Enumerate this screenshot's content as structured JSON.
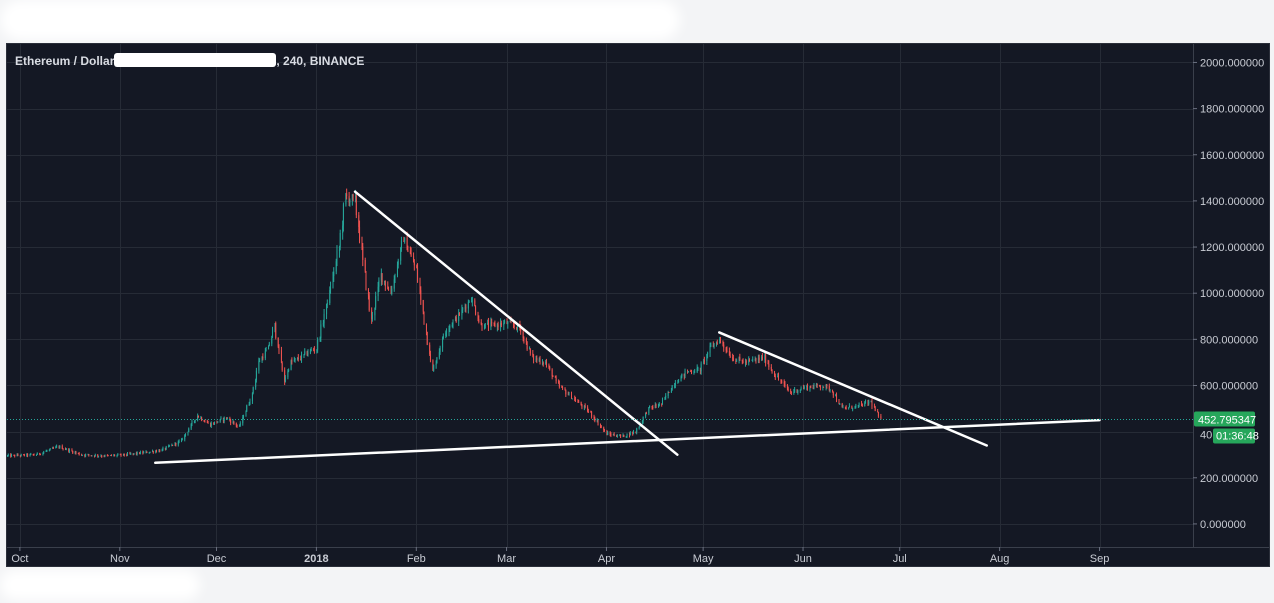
{
  "header": {
    "symbol": "Ethereum / Dollar",
    "interval_exchange": ", 240, BINANCE"
  },
  "last_price": {
    "value_label": "452.795347",
    "countdown": "01:36:48",
    "partial_tick": "40",
    "tag_color": "#26a65b",
    "line_color": "#26a69a"
  },
  "colors": {
    "background": "#141824",
    "grid": "#262b36",
    "up": "#26a69a",
    "down": "#ef5350",
    "trendline": "#ffffff"
  },
  "chart_data": {
    "type": "candlestick",
    "x_axis": {
      "type": "date",
      "range": [
        "2017-09-27",
        "2018-09-30"
      ],
      "tick_labels": [
        {
          "date": "2017-10-01",
          "label": "Oct"
        },
        {
          "date": "2017-11-01",
          "label": "Nov"
        },
        {
          "date": "2017-12-01",
          "label": "Dec"
        },
        {
          "date": "2018-01-01",
          "label": "2018",
          "bold": true
        },
        {
          "date": "2018-02-01",
          "label": "Feb"
        },
        {
          "date": "2018-03-01",
          "label": "Mar"
        },
        {
          "date": "2018-04-01",
          "label": "Apr"
        },
        {
          "date": "2018-05-01",
          "label": "May"
        },
        {
          "date": "2018-06-01",
          "label": "Jun"
        },
        {
          "date": "2018-07-01",
          "label": "Jul"
        },
        {
          "date": "2018-08-01",
          "label": "Aug"
        },
        {
          "date": "2018-09-01",
          "label": "Sep"
        }
      ]
    },
    "y_axis": {
      "range": [
        -100,
        2080
      ],
      "ticks": [
        {
          "value": 0,
          "label": "0.000000"
        },
        {
          "value": 200,
          "label": "200.000000"
        },
        {
          "value": 600,
          "label": "600.000000"
        },
        {
          "value": 800,
          "label": "800.000000"
        },
        {
          "value": 1000,
          "label": "1000.000000"
        },
        {
          "value": 1200,
          "label": "1200.000000"
        },
        {
          "value": 1400,
          "label": "1400.000000"
        },
        {
          "value": 1600,
          "label": "1600.000000"
        },
        {
          "value": 1800,
          "label": "1800.000000"
        },
        {
          "value": 2000,
          "label": "2000.000000"
        }
      ],
      "grid_values": [
        0,
        200,
        400,
        600,
        800,
        1000,
        1200,
        1400,
        1600,
        1800,
        2000
      ]
    },
    "grid": true,
    "price_path": [
      [
        "2017-09-27",
        295
      ],
      [
        "2017-10-06",
        300
      ],
      [
        "2017-10-13",
        335
      ],
      [
        "2017-10-20",
        300
      ],
      [
        "2017-10-28",
        295
      ],
      [
        "2017-11-03",
        300
      ],
      [
        "2017-11-09",
        310
      ],
      [
        "2017-11-14",
        320
      ],
      [
        "2017-11-20",
        360
      ],
      [
        "2017-11-25",
        470
      ],
      [
        "2017-11-29",
        430
      ],
      [
        "2017-12-04",
        460
      ],
      [
        "2017-12-08",
        420
      ],
      [
        "2017-12-12",
        560
      ],
      [
        "2017-12-14",
        700
      ],
      [
        "2017-12-17",
        760
      ],
      [
        "2017-12-19",
        860
      ],
      [
        "2017-12-20",
        780
      ],
      [
        "2017-12-22",
        620
      ],
      [
        "2017-12-24",
        700
      ],
      [
        "2017-12-27",
        720
      ],
      [
        "2017-12-30",
        750
      ],
      [
        "2018-01-01",
        760
      ],
      [
        "2018-01-05",
        1000
      ],
      [
        "2018-01-08",
        1200
      ],
      [
        "2018-01-10",
        1420
      ],
      [
        "2018-01-13",
        1400
      ],
      [
        "2018-01-16",
        1080
      ],
      [
        "2018-01-18",
        880
      ],
      [
        "2018-01-21",
        1080
      ],
      [
        "2018-01-24",
        1000
      ],
      [
        "2018-01-28",
        1240
      ],
      [
        "2018-02-01",
        1100
      ],
      [
        "2018-02-03",
        920
      ],
      [
        "2018-02-06",
        660
      ],
      [
        "2018-02-10",
        840
      ],
      [
        "2018-02-14",
        900
      ],
      [
        "2018-02-18",
        980
      ],
      [
        "2018-02-21",
        860
      ],
      [
        "2018-02-25",
        860
      ],
      [
        "2018-03-01",
        870
      ],
      [
        "2018-03-05",
        850
      ],
      [
        "2018-03-09",
        720
      ],
      [
        "2018-03-13",
        700
      ],
      [
        "2018-03-17",
        600
      ],
      [
        "2018-03-22",
        540
      ],
      [
        "2018-03-27",
        480
      ],
      [
        "2018-04-01",
        390
      ],
      [
        "2018-04-06",
        380
      ],
      [
        "2018-04-10",
        400
      ],
      [
        "2018-04-14",
        500
      ],
      [
        "2018-04-18",
        520
      ],
      [
        "2018-04-22",
        610
      ],
      [
        "2018-04-26",
        660
      ],
      [
        "2018-04-30",
        670
      ],
      [
        "2018-05-03",
        760
      ],
      [
        "2018-05-06",
        800
      ],
      [
        "2018-05-10",
        720
      ],
      [
        "2018-05-14",
        700
      ],
      [
        "2018-05-20",
        720
      ],
      [
        "2018-05-23",
        650
      ],
      [
        "2018-05-28",
        570
      ],
      [
        "2018-06-01",
        590
      ],
      [
        "2018-06-07",
        600
      ],
      [
        "2018-06-10",
        580
      ],
      [
        "2018-06-13",
        500
      ],
      [
        "2018-06-18",
        510
      ],
      [
        "2018-06-22",
        530
      ],
      [
        "2018-06-25",
        450
      ]
    ],
    "trendlines": [
      {
        "from": [
          "2018-01-13",
          1440
        ],
        "to": [
          "2018-04-23",
          300
        ]
      },
      {
        "from": [
          "2017-11-12",
          265
        ],
        "to": [
          "2018-09-01",
          450
        ]
      },
      {
        "from": [
          "2018-05-06",
          830
        ],
        "to": [
          "2018-07-28",
          340
        ]
      }
    ],
    "last_price_line": 452.795347
  }
}
